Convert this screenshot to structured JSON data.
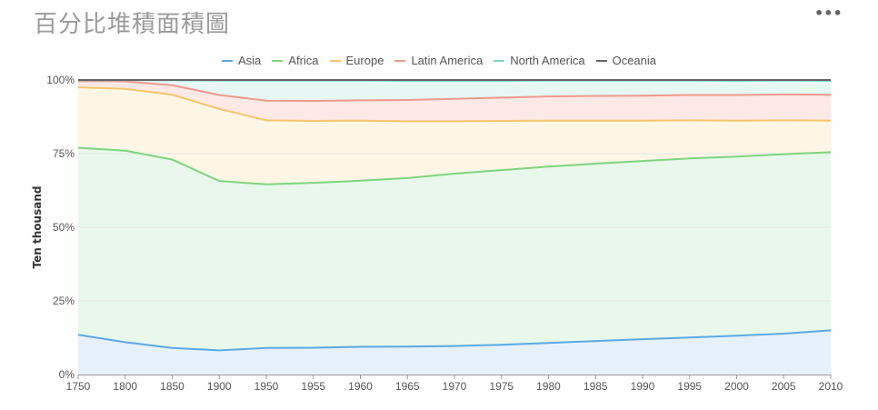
{
  "title": "百分比堆積面積圖",
  "menu_icon": "more-horizontal-icon",
  "menu_glyph": "•••",
  "chart_data": {
    "type": "area",
    "stacked": "percent",
    "ylabel": "Ten thousand",
    "xlabel": "",
    "x": [
      "1750",
      "1800",
      "1850",
      "1900",
      "1950",
      "1955",
      "1960",
      "1965",
      "1970",
      "1975",
      "1980",
      "1985",
      "1990",
      "1995",
      "2000",
      "2005",
      "2010"
    ],
    "y_ticks": [
      "0%",
      "25%",
      "50%",
      "75%",
      "100%"
    ],
    "ylim": [
      0,
      100
    ],
    "legend_position": "top-center",
    "grid": true,
    "series": [
      {
        "name": "Asia",
        "color": "#5aa9e6",
        "fill": "#e6f1fb",
        "values": [
          13.5,
          11,
          9,
          8.2,
          9,
          9.1,
          9.4,
          9.5,
          9.7,
          10.1,
          10.7,
          11.4,
          12,
          12.6,
          13.2,
          13.9,
          15
        ]
      },
      {
        "name": "Africa",
        "color": "#7ed57e",
        "fill": "#e8f8ea",
        "values": [
          63.5,
          65,
          64,
          57.5,
          55.6,
          56,
          56.4,
          57.2,
          58.5,
          59.3,
          59.9,
          60.2,
          60.5,
          60.8,
          60.8,
          60.9,
          60.5
        ]
      },
      {
        "name": "Europe",
        "color": "#f7c56a",
        "fill": "#fff6e6",
        "values": [
          20.5,
          21,
          22,
          24.5,
          21.7,
          21,
          20.4,
          19.3,
          17.8,
          16.7,
          15.6,
          14.6,
          13.7,
          12.9,
          12.2,
          11.5,
          10.7
        ]
      },
      {
        "name": "Latin America",
        "color": "#ef9a8c",
        "fill": "#fde9e6",
        "values": [
          2.1,
          2.5,
          3.2,
          4.7,
          6.7,
          6.8,
          6.9,
          7.2,
          7.6,
          7.9,
          8.2,
          8.4,
          8.5,
          8.6,
          8.7,
          8.8,
          8.8
        ]
      },
      {
        "name": "North America",
        "color": "#7fd6c9",
        "fill": "#e6f7f4",
        "values": [
          0.3,
          0.4,
          1.7,
          4.9,
          6.8,
          6.9,
          6.7,
          6.5,
          6.1,
          5.7,
          5.4,
          5.2,
          5.1,
          4.9,
          4.8,
          4.7,
          4.7
        ]
      },
      {
        "name": "Oceania",
        "color": "#666666",
        "fill": "#f0f0f0",
        "values": [
          0.1,
          0.1,
          0.1,
          0.2,
          0.2,
          0.2,
          0.2,
          0.3,
          0.3,
          0.3,
          0.2,
          0.2,
          0.2,
          0.2,
          0.3,
          0.2,
          0.3
        ]
      }
    ]
  }
}
